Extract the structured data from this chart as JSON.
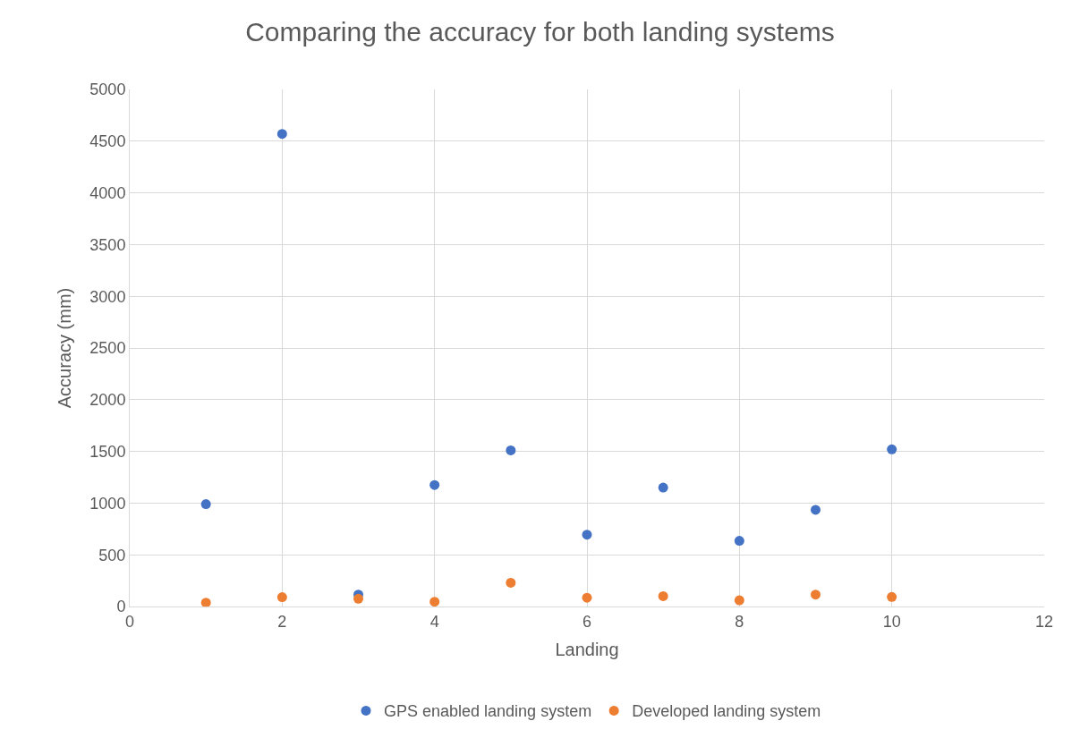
{
  "chart_data": {
    "type": "scatter",
    "title": "Comparing the accuracy for both landing systems",
    "xlabel": "Landing",
    "ylabel": "Accuracy (mm)",
    "x": [
      1,
      2,
      3,
      4,
      5,
      6,
      7,
      8,
      9,
      10
    ],
    "series": [
      {
        "name": "GPS enabled landing system",
        "color": "#4472c4",
        "values": [
          990,
          4570,
          115,
          1175,
          1510,
          695,
          1150,
          635,
          935,
          1520
        ]
      },
      {
        "name": "Developed landing system",
        "color": "#ed7d31",
        "values": [
          37,
          90,
          75,
          46,
          230,
          85,
          100,
          60,
          115,
          92
        ]
      }
    ],
    "xlim": [
      0,
      12
    ],
    "xticks": [
      0,
      2,
      4,
      6,
      8,
      10,
      12
    ],
    "ylim": [
      0,
      5000
    ],
    "yticks": [
      0,
      500,
      1000,
      1500,
      2000,
      2500,
      3000,
      3500,
      4000,
      4500,
      5000
    ],
    "grid": true,
    "legend": "bottom",
    "marker": "circle"
  }
}
